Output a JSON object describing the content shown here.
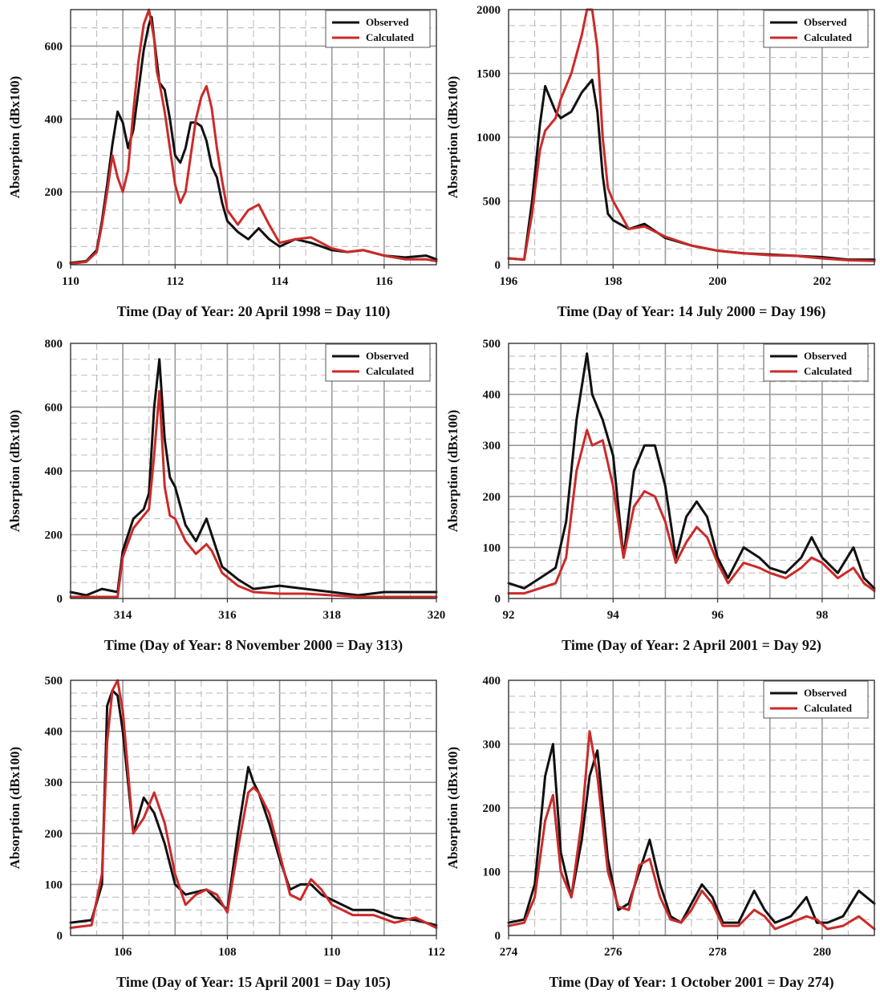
{
  "colors": {
    "observed": "#111111",
    "calculated": "#cc2a2a",
    "grid_major": "#9a9a9a",
    "grid_minor": "#bdbdbd"
  },
  "chart_data": [
    {
      "type": "line",
      "xlabel": "Time  (Day of Year:  20 April 1998 = Day 110)",
      "ylabel": "Absorption   (dBx100)",
      "xlim": [
        110,
        117
      ],
      "ylim": [
        0,
        700
      ],
      "xticks": [
        110,
        112,
        114,
        116
      ],
      "yticks": [
        0,
        200,
        400,
        600
      ],
      "grid": true,
      "legend": "top-right",
      "legend_shown": true,
      "series": [
        {
          "name": "Observed",
          "x": [
            110.0,
            110.3,
            110.5,
            110.6,
            110.7,
            110.8,
            110.9,
            111.0,
            111.1,
            111.2,
            111.3,
            111.4,
            111.5,
            111.55,
            111.6,
            111.7,
            111.8,
            111.9,
            112.0,
            112.1,
            112.2,
            112.3,
            112.4,
            112.5,
            112.6,
            112.7,
            112.8,
            112.9,
            113.0,
            113.2,
            113.4,
            113.6,
            113.8,
            114.0,
            114.3,
            114.6,
            115.0,
            115.3,
            115.6,
            116.0,
            116.4,
            116.8,
            117.0
          ],
          "y": [
            5,
            10,
            40,
            120,
            220,
            330,
            420,
            390,
            320,
            370,
            480,
            590,
            660,
            680,
            620,
            500,
            480,
            400,
            300,
            280,
            320,
            390,
            390,
            380,
            340,
            270,
            240,
            170,
            120,
            90,
            70,
            100,
            70,
            50,
            70,
            60,
            40,
            35,
            40,
            25,
            20,
            25,
            15
          ]
        },
        {
          "name": "Calculated",
          "x": [
            110.0,
            110.3,
            110.5,
            110.6,
            110.7,
            110.8,
            110.9,
            111.0,
            111.1,
            111.2,
            111.3,
            111.4,
            111.5,
            111.6,
            111.65,
            111.7,
            111.8,
            111.9,
            112.0,
            112.1,
            112.2,
            112.3,
            112.4,
            112.5,
            112.6,
            112.7,
            112.8,
            112.9,
            113.0,
            113.2,
            113.4,
            113.6,
            113.8,
            114.0,
            114.3,
            114.6,
            115.0,
            115.3,
            115.6,
            116.0,
            116.4,
            116.8,
            117.0
          ],
          "y": [
            3,
            8,
            35,
            110,
            200,
            300,
            240,
            200,
            260,
            420,
            560,
            660,
            700,
            620,
            530,
            500,
            420,
            320,
            220,
            170,
            200,
            300,
            400,
            460,
            490,
            430,
            320,
            230,
            150,
            110,
            150,
            165,
            110,
            60,
            70,
            75,
            45,
            35,
            40,
            25,
            15,
            15,
            10
          ]
        }
      ]
    },
    {
      "type": "line",
      "xlabel": "Time  (Day of Year:  14 July 2000 = Day 196)",
      "ylabel": "Absorption   (dBx100)",
      "xlim": [
        196,
        203
      ],
      "ylim": [
        0,
        2000
      ],
      "xticks": [
        196,
        198,
        200,
        202
      ],
      "yticks": [
        0,
        500,
        1000,
        1500,
        2000
      ],
      "grid": true,
      "legend": "top-right",
      "legend_shown": true,
      "series": [
        {
          "name": "Observed",
          "x": [
            196.0,
            196.3,
            196.45,
            196.6,
            196.7,
            196.8,
            196.9,
            197.0,
            197.2,
            197.4,
            197.6,
            197.7,
            197.8,
            197.9,
            198.0,
            198.3,
            198.6,
            199.0,
            199.5,
            200.0,
            200.5,
            201.0,
            201.5,
            202.0,
            202.5,
            203.0
          ],
          "y": [
            50,
            40,
            500,
            1100,
            1400,
            1300,
            1200,
            1150,
            1200,
            1350,
            1450,
            1200,
            700,
            400,
            350,
            280,
            320,
            210,
            150,
            110,
            90,
            80,
            70,
            60,
            40,
            40
          ]
        },
        {
          "name": "Calculated",
          "x": [
            196.0,
            196.3,
            196.45,
            196.6,
            196.7,
            196.8,
            196.9,
            197.0,
            197.2,
            197.4,
            197.5,
            197.6,
            197.7,
            197.8,
            197.9,
            198.0,
            198.3,
            198.6,
            199.0,
            199.5,
            200.0,
            200.5,
            201.0,
            201.5,
            202.0,
            202.5,
            203.0
          ],
          "y": [
            50,
            40,
            400,
            900,
            1050,
            1100,
            1150,
            1300,
            1500,
            1800,
            2000,
            2000,
            1700,
            1000,
            600,
            500,
            280,
            300,
            220,
            150,
            110,
            90,
            75,
            70,
            50,
            35,
            30
          ]
        }
      ]
    },
    {
      "type": "line",
      "xlabel": "Time  (Day of Year:  8 November 2000 = Day 313)",
      "ylabel": "Absorption   (dBx100)",
      "xlim": [
        313,
        320
      ],
      "ylim": [
        0,
        800
      ],
      "xticks": [
        314,
        316,
        318,
        320
      ],
      "yticks": [
        0,
        200,
        400,
        600,
        800
      ],
      "grid": true,
      "legend": "top-right",
      "legend_shown": true,
      "series": [
        {
          "name": "Observed",
          "x": [
            313.0,
            313.3,
            313.6,
            313.9,
            314.0,
            314.2,
            314.4,
            314.5,
            314.6,
            314.7,
            314.8,
            314.9,
            315.0,
            315.2,
            315.4,
            315.6,
            315.7,
            315.9,
            316.2,
            316.5,
            317.0,
            317.5,
            318.0,
            318.5,
            319.0,
            319.5,
            320.0
          ],
          "y": [
            20,
            10,
            30,
            20,
            150,
            250,
            280,
            330,
            600,
            750,
            500,
            380,
            350,
            230,
            180,
            250,
            200,
            100,
            60,
            30,
            40,
            30,
            20,
            10,
            20,
            20,
            20
          ]
        },
        {
          "name": "Calculated",
          "x": [
            313.0,
            313.3,
            313.6,
            313.9,
            314.0,
            314.2,
            314.4,
            314.5,
            314.6,
            314.7,
            314.8,
            314.9,
            315.0,
            315.2,
            315.4,
            315.6,
            315.7,
            315.9,
            316.2,
            316.5,
            317.0,
            317.5,
            318.0,
            318.5,
            319.0,
            319.5,
            320.0
          ],
          "y": [
            5,
            5,
            5,
            5,
            130,
            220,
            260,
            280,
            450,
            650,
            350,
            260,
            250,
            180,
            140,
            170,
            150,
            80,
            40,
            20,
            15,
            15,
            10,
            5,
            5,
            5,
            5
          ]
        }
      ]
    },
    {
      "type": "line",
      "xlabel": "Time  (Day of Year:  2 April 2001 = Day 92)",
      "ylabel": "Absorption   (dBx100)",
      "xlim": [
        92,
        99
      ],
      "ylim": [
        0,
        500
      ],
      "xticks": [
        92,
        94,
        96,
        98
      ],
      "yticks": [
        0,
        100,
        200,
        300,
        400,
        500
      ],
      "grid": true,
      "legend": "top-right",
      "legend_shown": true,
      "series": [
        {
          "name": "Observed",
          "x": [
            92.0,
            92.3,
            92.6,
            92.9,
            93.1,
            93.3,
            93.5,
            93.6,
            93.8,
            94.0,
            94.2,
            94.4,
            94.6,
            94.8,
            95.0,
            95.2,
            95.4,
            95.6,
            95.8,
            96.0,
            96.2,
            96.5,
            96.8,
            97.0,
            97.3,
            97.6,
            97.8,
            98.0,
            98.3,
            98.6,
            98.8,
            99.0
          ],
          "y": [
            30,
            20,
            40,
            60,
            150,
            350,
            480,
            400,
            350,
            280,
            80,
            250,
            300,
            300,
            220,
            80,
            160,
            190,
            160,
            80,
            40,
            100,
            80,
            60,
            50,
            80,
            120,
            80,
            50,
            100,
            40,
            20
          ]
        },
        {
          "name": "Calculated",
          "x": [
            92.0,
            92.3,
            92.6,
            92.9,
            93.1,
            93.3,
            93.5,
            93.6,
            93.8,
            94.0,
            94.2,
            94.4,
            94.6,
            94.8,
            95.0,
            95.2,
            95.4,
            95.6,
            95.8,
            96.0,
            96.2,
            96.5,
            96.8,
            97.0,
            97.3,
            97.6,
            97.8,
            98.0,
            98.3,
            98.6,
            98.8,
            99.0
          ],
          "y": [
            10,
            10,
            20,
            30,
            80,
            250,
            330,
            300,
            310,
            220,
            80,
            180,
            210,
            200,
            150,
            70,
            110,
            140,
            120,
            70,
            30,
            70,
            60,
            50,
            40,
            60,
            80,
            70,
            40,
            60,
            30,
            15
          ]
        }
      ]
    },
    {
      "type": "line",
      "xlabel": "Time  (Day of Year:  15 April 2001 = Day 105)",
      "ylabel": "Absorption   (dBx100)",
      "xlim": [
        105,
        112
      ],
      "ylim": [
        0,
        500
      ],
      "xticks": [
        106,
        108,
        110,
        112
      ],
      "yticks": [
        0,
        100,
        200,
        300,
        400,
        500
      ],
      "grid": true,
      "legend": "none",
      "legend_shown": false,
      "series": [
        {
          "name": "Observed",
          "x": [
            105.0,
            105.4,
            105.6,
            105.7,
            105.8,
            105.9,
            106.0,
            106.2,
            106.4,
            106.6,
            106.8,
            107.0,
            107.2,
            107.4,
            107.6,
            107.8,
            108.0,
            108.2,
            108.4,
            108.5,
            108.6,
            108.8,
            109.0,
            109.2,
            109.4,
            109.6,
            109.8,
            110.0,
            110.4,
            110.8,
            111.2,
            111.6,
            112.0
          ],
          "y": [
            25,
            30,
            100,
            450,
            480,
            470,
            400,
            200,
            270,
            240,
            180,
            100,
            80,
            85,
            90,
            70,
            50,
            200,
            330,
            300,
            280,
            220,
            150,
            90,
            100,
            100,
            80,
            70,
            50,
            50,
            35,
            30,
            20
          ]
        },
        {
          "name": "Calculated",
          "x": [
            105.0,
            105.4,
            105.6,
            105.7,
            105.8,
            105.9,
            106.0,
            106.2,
            106.4,
            106.6,
            106.8,
            107.0,
            107.2,
            107.4,
            107.6,
            107.8,
            108.0,
            108.2,
            108.4,
            108.5,
            108.6,
            108.8,
            109.0,
            109.2,
            109.4,
            109.6,
            109.8,
            110.0,
            110.4,
            110.8,
            111.2,
            111.6,
            112.0
          ],
          "y": [
            15,
            20,
            120,
            380,
            480,
            500,
            440,
            200,
            230,
            280,
            220,
            120,
            60,
            80,
            90,
            80,
            45,
            170,
            280,
            290,
            280,
            240,
            160,
            80,
            70,
            110,
            90,
            60,
            40,
            40,
            25,
            35,
            15
          ]
        }
      ]
    },
    {
      "type": "line",
      "xlabel": "Time  (Day of Year:  1 October 2001 = Day 274)",
      "ylabel": "Absorption   (dBx100)",
      "xlim": [
        274,
        281
      ],
      "ylim": [
        0,
        400
      ],
      "xticks": [
        274,
        276,
        278,
        280
      ],
      "yticks": [
        0,
        100,
        200,
        300,
        400
      ],
      "grid": true,
      "legend": "top-right",
      "legend_shown": true,
      "series": [
        {
          "name": "Observed",
          "x": [
            274.0,
            274.3,
            274.5,
            274.7,
            274.85,
            275.0,
            275.2,
            275.4,
            275.55,
            275.7,
            275.9,
            276.1,
            276.3,
            276.5,
            276.7,
            276.9,
            277.1,
            277.3,
            277.5,
            277.7,
            277.9,
            278.1,
            278.4,
            278.7,
            278.9,
            279.1,
            279.4,
            279.7,
            279.9,
            280.1,
            280.4,
            280.7,
            281.0
          ],
          "y": [
            20,
            25,
            80,
            250,
            300,
            130,
            60,
            150,
            250,
            290,
            120,
            40,
            50,
            100,
            150,
            80,
            30,
            20,
            50,
            80,
            60,
            20,
            20,
            70,
            40,
            20,
            30,
            60,
            20,
            20,
            30,
            70,
            50
          ]
        },
        {
          "name": "Calculated",
          "x": [
            274.0,
            274.3,
            274.5,
            274.7,
            274.85,
            275.0,
            275.2,
            275.4,
            275.55,
            275.7,
            275.9,
            276.1,
            276.3,
            276.5,
            276.7,
            276.9,
            277.1,
            277.3,
            277.5,
            277.7,
            277.9,
            278.1,
            278.4,
            278.7,
            278.9,
            279.1,
            279.4,
            279.7,
            279.9,
            280.1,
            280.4,
            280.7,
            281.0
          ],
          "y": [
            15,
            20,
            60,
            180,
            220,
            100,
            60,
            180,
            320,
            250,
            100,
            45,
            40,
            110,
            120,
            60,
            25,
            20,
            40,
            70,
            50,
            15,
            15,
            40,
            30,
            10,
            20,
            30,
            25,
            10,
            15,
            30,
            10
          ]
        }
      ]
    }
  ]
}
